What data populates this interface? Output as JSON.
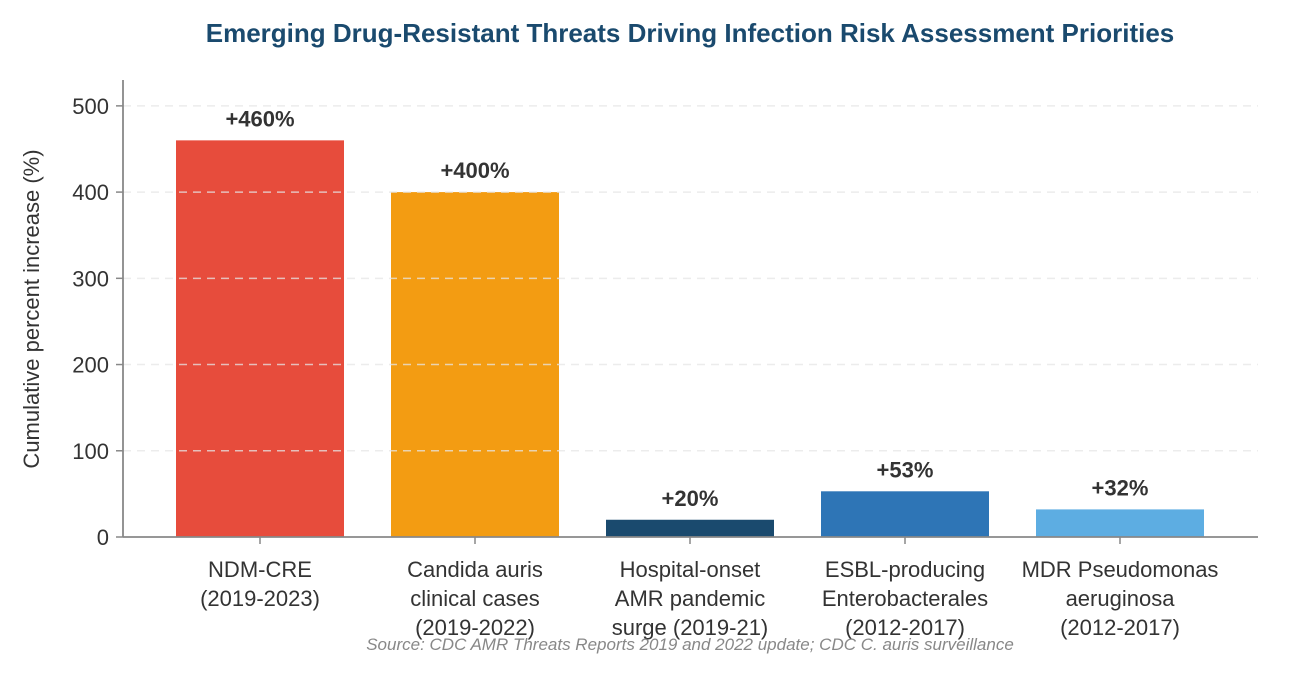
{
  "chart_data": {
    "type": "bar",
    "title": "Emerging Drug-Resistant Threats Driving Infection Risk Assessment Priorities",
    "ylabel": "Cumulative percent increase (%)",
    "xlabel": "",
    "ylim": [
      0,
      530
    ],
    "yticks": [
      0,
      100,
      200,
      300,
      400,
      500
    ],
    "grid": true,
    "categories": [
      [
        "NDM-CRE",
        "(2019-2023)"
      ],
      [
        "Candida auris",
        "clinical cases",
        "(2019-2022)"
      ],
      [
        "Hospital-onset",
        "AMR pandemic",
        "surge (2019-21)"
      ],
      [
        "ESBL-producing",
        "Enterobacterales",
        "(2012-2017)"
      ],
      [
        "MDR Pseudomonas",
        "aeruginosa",
        "(2012-2017)"
      ]
    ],
    "values": [
      460,
      400,
      20,
      53,
      32
    ],
    "data_labels": [
      "+460%",
      "+400%",
      "+20%",
      "+53%",
      "+32%"
    ],
    "colors": [
      "#e74c3c",
      "#f39c12",
      "#1a4a6e",
      "#2e75b6",
      "#5dade2"
    ],
    "source": "Source: CDC AMR Threats Reports 2019 and 2022 update; CDC C. auris surveillance"
  },
  "style": {
    "title_color": "#1a4a6e",
    "axis_color": "#888888",
    "grid_color": "#dddddd"
  }
}
